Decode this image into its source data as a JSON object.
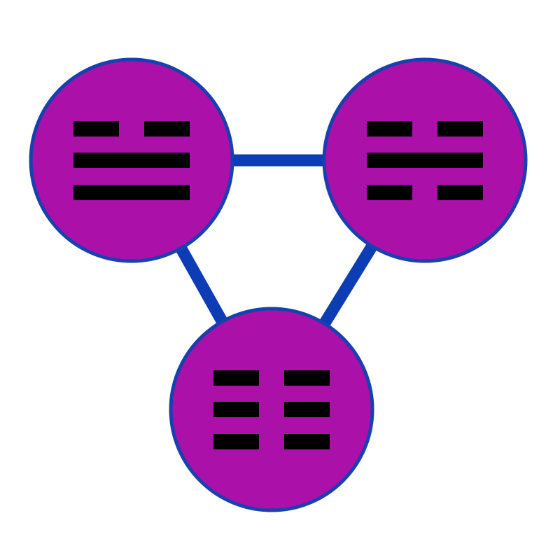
{
  "diagram": {
    "type": "trigram-network",
    "colors": {
      "background": "#ffffff",
      "node_fill": "#ab10a9",
      "node_stroke": "#1940b0",
      "edge": "#0d3db5",
      "line": "#000000"
    },
    "nodes": [
      {
        "id": "top-left",
        "lines": [
          "broken",
          "solid",
          "solid"
        ]
      },
      {
        "id": "top-right",
        "lines": [
          "broken",
          "solid",
          "broken"
        ]
      },
      {
        "id": "bottom",
        "lines": [
          "broken",
          "broken",
          "broken"
        ]
      }
    ],
    "edges": [
      {
        "from": "top-left",
        "to": "top-right"
      },
      {
        "from": "top-left",
        "to": "bottom"
      },
      {
        "from": "top-right",
        "to": "bottom"
      }
    ]
  }
}
